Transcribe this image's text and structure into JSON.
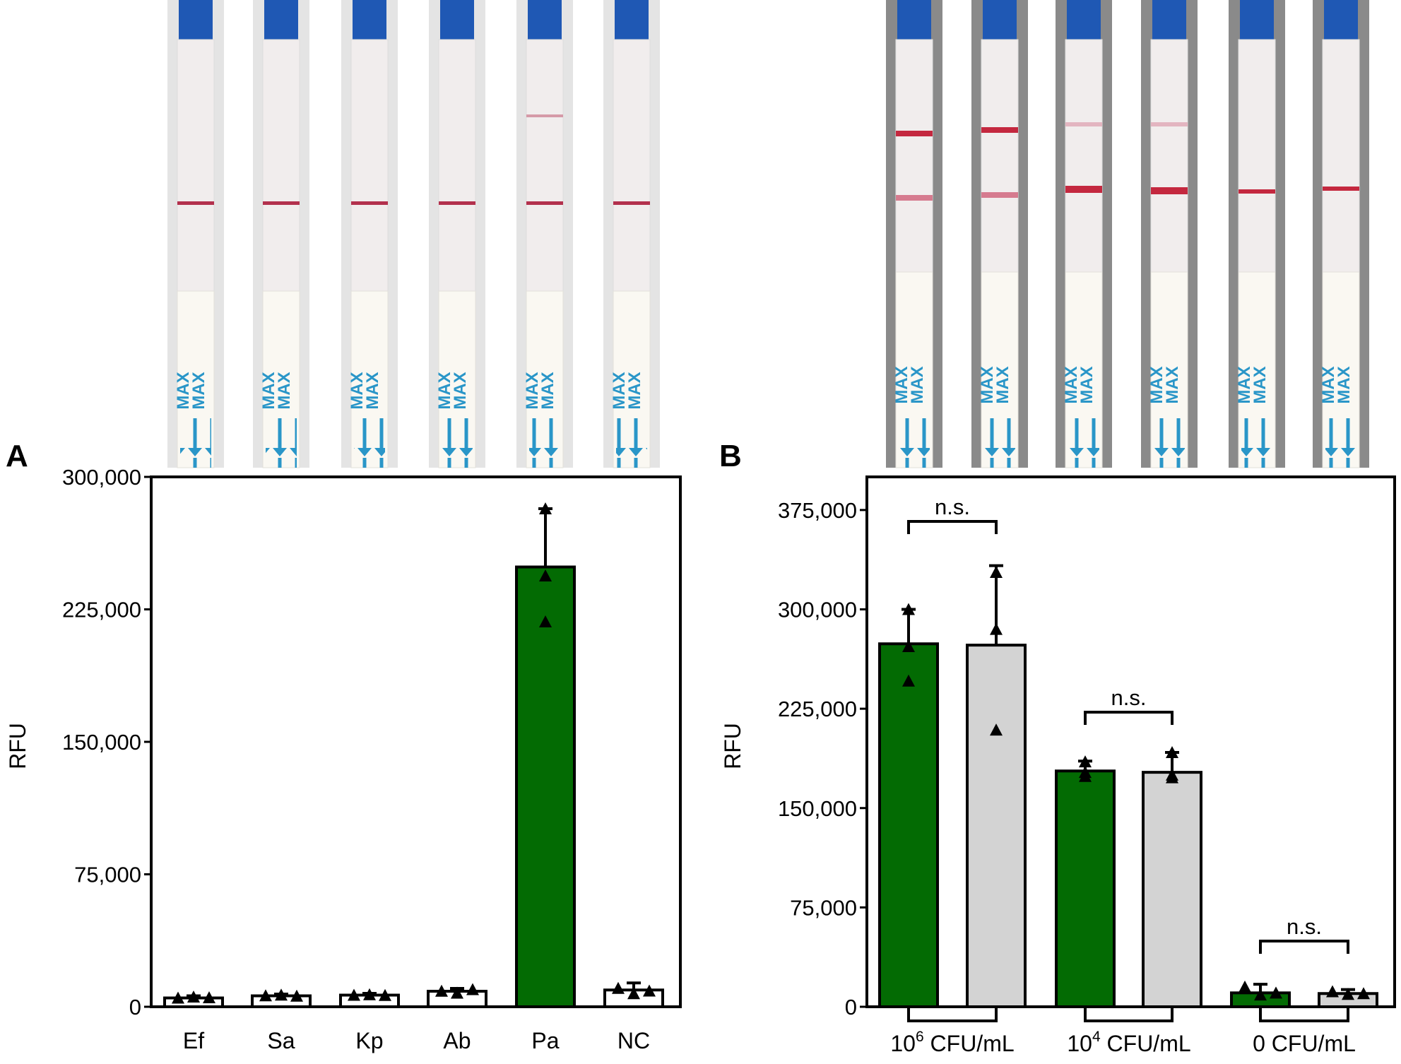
{
  "panel_a": {
    "letter": "A",
    "strip_mark": "MAX",
    "chart_data": {
      "type": "bar",
      "title": "",
      "xlabel": "",
      "ylabel": "RFU",
      "ylim": [
        0,
        300000
      ],
      "yticks": [
        0,
        75000,
        150000,
        225000,
        300000
      ],
      "ytick_labels": [
        "0",
        "75,000",
        "150,000",
        "225,000",
        "300,000"
      ],
      "categories": [
        "Ef",
        "Sa",
        "Kp",
        "Ab",
        "Pa",
        "NC"
      ],
      "values": [
        5000,
        6200,
        6600,
        8800,
        249000,
        9500
      ],
      "errors": [
        1200,
        1000,
        1000,
        1600,
        33000,
        4000
      ],
      "points": [
        [
          5000,
          5600,
          5200
        ],
        [
          6300,
          6700,
          6100
        ],
        [
          6600,
          6900,
          6500
        ],
        [
          8900,
          7800,
          9800
        ],
        [
          282000,
          244000,
          218000
        ],
        [
          10500,
          7500,
          9000
        ]
      ],
      "fill_colors": [
        "#ffffff",
        "#ffffff",
        "#ffffff",
        "#ffffff",
        "#036b03",
        "#ffffff"
      ]
    }
  },
  "panel_b": {
    "letter": "B",
    "strip_mark": "MAX",
    "chart_data": {
      "type": "bar",
      "title": "",
      "xlabel": "",
      "ylabel": "RFU",
      "ylim": [
        0,
        400000
      ],
      "yticks": [
        0,
        75000,
        150000,
        225000,
        300000,
        375000
      ],
      "ytick_labels": [
        "0",
        "75,000",
        "150,000",
        "225,000",
        "300,000",
        "375,000"
      ],
      "groups": [
        {
          "label_base": "10",
          "label_exp": "6",
          "label_unit": " CFU/mL"
        },
        {
          "label_base": "10",
          "label_exp": "4",
          "label_unit": " CFU/mL"
        },
        {
          "label_base": "",
          "label_exp": "",
          "label_unit": "0 CFU/mL"
        }
      ],
      "values": [
        274000,
        273000,
        178000,
        177000,
        10500,
        10000
      ],
      "errors": [
        26000,
        60000,
        7500,
        15000,
        6500,
        3000
      ],
      "points": [
        [
          300000,
          272000,
          246000
        ],
        [
          328000,
          285000,
          209000
        ],
        [
          185000,
          174000,
          177000
        ],
        [
          192000,
          173000,
          175000
        ],
        [
          15000,
          9000,
          10500
        ],
        [
          11500,
          9500,
          10000
        ]
      ],
      "fill_colors": [
        "#036b03",
        "#d3d3d3",
        "#036b03",
        "#d3d3d3",
        "#036b03",
        "#d3d3d3"
      ],
      "significance": [
        "n.s.",
        "n.s.",
        "n.s."
      ]
    }
  }
}
